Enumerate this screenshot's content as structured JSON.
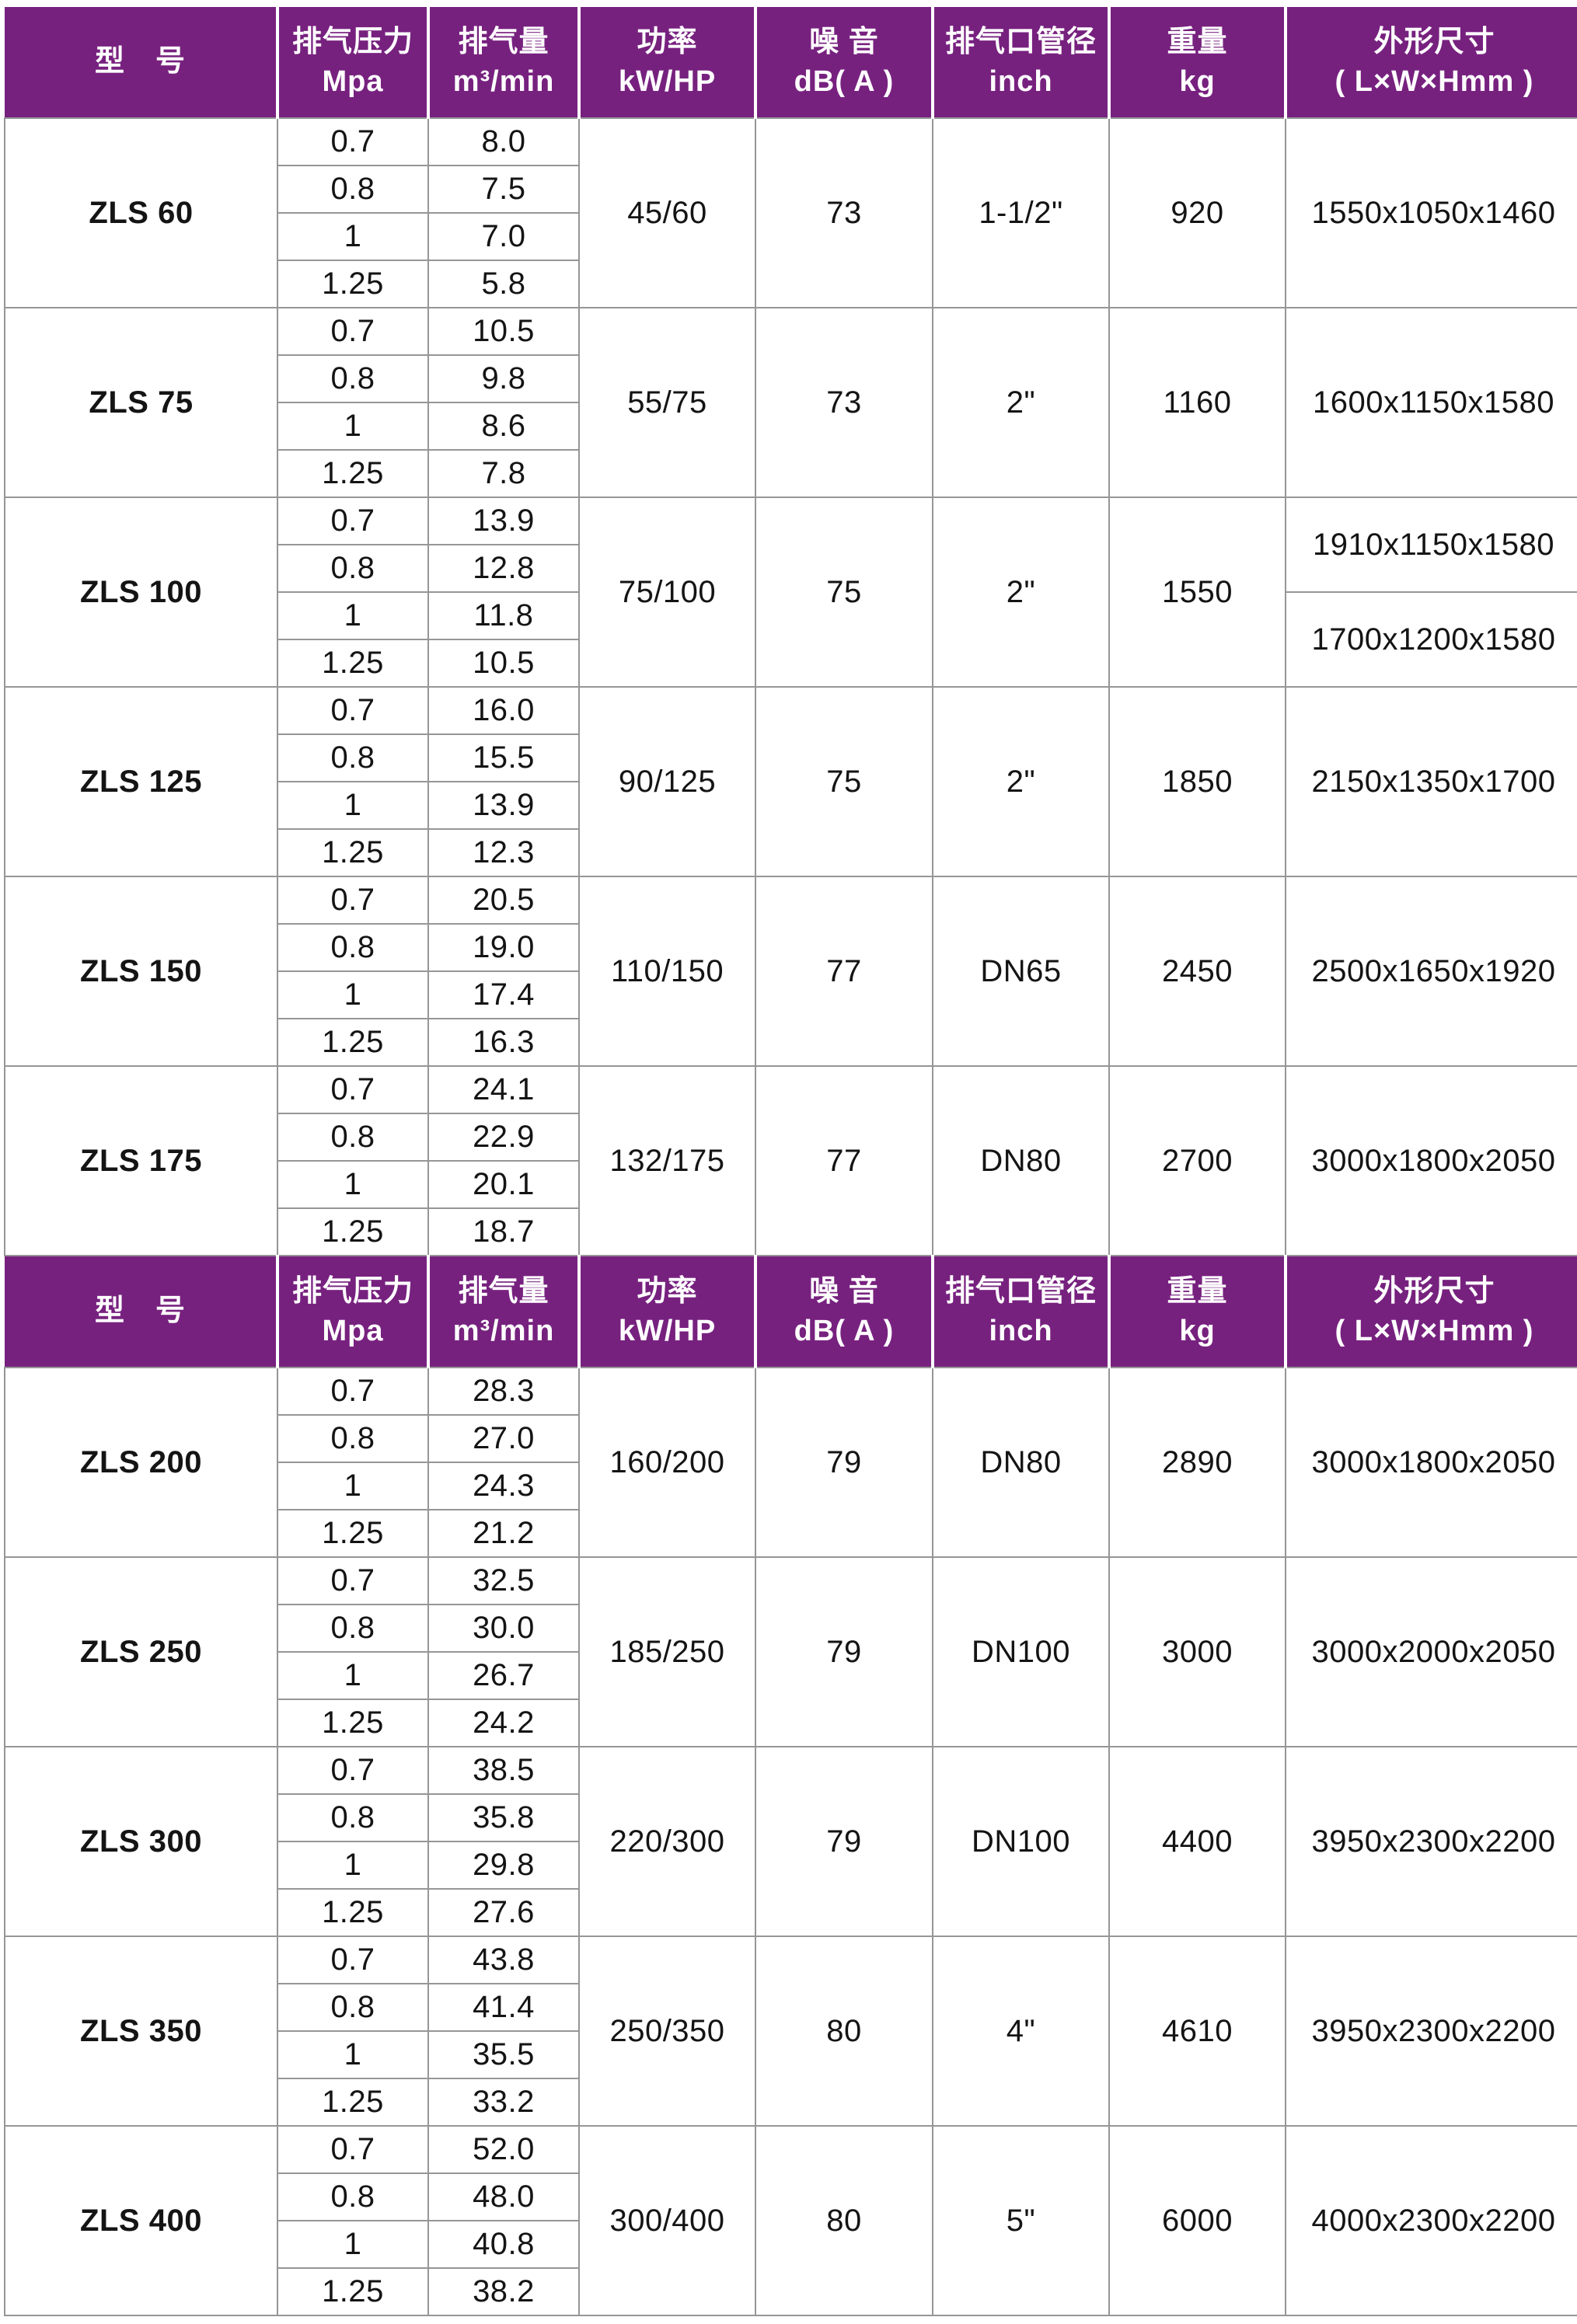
{
  "theme": {
    "header_bg": "#77217F",
    "header_text": "#FFFFFF",
    "model_text": "#701F7E",
    "grid": "#969696"
  },
  "header": {
    "model": {
      "line1": "型　号",
      "line2": ""
    },
    "pressure": {
      "line1": "排气压力",
      "line2": "Mpa"
    },
    "flow": {
      "line1": "排气量",
      "line2": "m³/min"
    },
    "power": {
      "line1": "功率",
      "line2": "kW/HP"
    },
    "noise": {
      "line1": "噪 音",
      "line2": "dB( A )"
    },
    "pipe": {
      "line1": "排气口管径",
      "line2": "inch"
    },
    "weight": {
      "line1": "重量",
      "line2": "kg"
    },
    "dims": {
      "line1": "外形尺寸",
      "line2": "( L×W×Hmm )"
    }
  },
  "sections": [
    {
      "models": [
        {
          "name": "ZLS 60",
          "rows": [
            {
              "p": "0.7",
              "f": "8.0"
            },
            {
              "p": "0.8",
              "f": "7.5"
            },
            {
              "p": "1",
              "f": "7.0"
            },
            {
              "p": "1.25",
              "f": "5.8"
            }
          ],
          "power": "45/60",
          "noise": "73",
          "pipe": "1-1/2\"",
          "weight": "920",
          "dims": [
            "1550x1050x1460"
          ]
        },
        {
          "name": "ZLS 75",
          "rows": [
            {
              "p": "0.7",
              "f": "10.5"
            },
            {
              "p": "0.8",
              "f": "9.8"
            },
            {
              "p": "1",
              "f": "8.6"
            },
            {
              "p": "1.25",
              "f": "7.8"
            }
          ],
          "power": "55/75",
          "noise": "73",
          "pipe": "2\"",
          "weight": "1160",
          "dims": [
            "1600x1150x1580"
          ]
        },
        {
          "name": "ZLS 100",
          "rows": [
            {
              "p": "0.7",
              "f": "13.9"
            },
            {
              "p": "0.8",
              "f": "12.8"
            },
            {
              "p": "1",
              "f": "11.8"
            },
            {
              "p": "1.25",
              "f": "10.5"
            }
          ],
          "power": "75/100",
          "noise": "75",
          "pipe": "2\"",
          "weight": "1550",
          "dims": [
            "1910x1150x1580",
            "1700x1200x1580"
          ]
        },
        {
          "name": "ZLS 125",
          "rows": [
            {
              "p": "0.7",
              "f": "16.0"
            },
            {
              "p": "0.8",
              "f": "15.5"
            },
            {
              "p": "1",
              "f": "13.9"
            },
            {
              "p": "1.25",
              "f": "12.3"
            }
          ],
          "power": "90/125",
          "noise": "75",
          "pipe": "2\"",
          "weight": "1850",
          "dims": [
            "2150x1350x1700"
          ]
        },
        {
          "name": "ZLS 150",
          "rows": [
            {
              "p": "0.7",
              "f": "20.5"
            },
            {
              "p": "0.8",
              "f": "19.0"
            },
            {
              "p": "1",
              "f": "17.4"
            },
            {
              "p": "1.25",
              "f": "16.3"
            }
          ],
          "power": "110/150",
          "noise": "77",
          "pipe": "DN65",
          "weight": "2450",
          "dims": [
            "2500x1650x1920"
          ]
        },
        {
          "name": "ZLS 175",
          "rows": [
            {
              "p": "0.7",
              "f": "24.1"
            },
            {
              "p": "0.8",
              "f": "22.9"
            },
            {
              "p": "1",
              "f": "20.1"
            },
            {
              "p": "1.25",
              "f": "18.7"
            }
          ],
          "power": "132/175",
          "noise": "77",
          "pipe": "DN80",
          "weight": "2700",
          "dims": [
            "3000x1800x2050"
          ]
        }
      ]
    },
    {
      "models": [
        {
          "name": "ZLS 200",
          "rows": [
            {
              "p": "0.7",
              "f": "28.3"
            },
            {
              "p": "0.8",
              "f": "27.0"
            },
            {
              "p": "1",
              "f": "24.3"
            },
            {
              "p": "1.25",
              "f": "21.2"
            }
          ],
          "power": "160/200",
          "noise": "79",
          "pipe": "DN80",
          "weight": "2890",
          "dims": [
            "3000x1800x2050"
          ]
        },
        {
          "name": "ZLS 250",
          "rows": [
            {
              "p": "0.7",
              "f": "32.5"
            },
            {
              "p": "0.8",
              "f": "30.0"
            },
            {
              "p": "1",
              "f": "26.7"
            },
            {
              "p": "1.25",
              "f": "24.2"
            }
          ],
          "power": "185/250",
          "noise": "79",
          "pipe": "DN100",
          "weight": "3000",
          "dims": [
            "3000x2000x2050"
          ]
        },
        {
          "name": "ZLS 300",
          "rows": [
            {
              "p": "0.7",
              "f": "38.5"
            },
            {
              "p": "0.8",
              "f": "35.8"
            },
            {
              "p": "1",
              "f": "29.8"
            },
            {
              "p": "1.25",
              "f": "27.6"
            }
          ],
          "power": "220/300",
          "noise": "79",
          "pipe": "DN100",
          "weight": "4400",
          "dims": [
            "3950x2300x2200"
          ]
        },
        {
          "name": "ZLS 350",
          "rows": [
            {
              "p": "0.7",
              "f": "43.8"
            },
            {
              "p": "0.8",
              "f": "41.4"
            },
            {
              "p": "1",
              "f": "35.5"
            },
            {
              "p": "1.25",
              "f": "33.2"
            }
          ],
          "power": "250/350",
          "noise": "80",
          "pipe": "4\"",
          "weight": "4610",
          "dims": [
            "3950x2300x2200"
          ]
        },
        {
          "name": "ZLS 400",
          "rows": [
            {
              "p": "0.7",
              "f": "52.0"
            },
            {
              "p": "0.8",
              "f": "48.0"
            },
            {
              "p": "1",
              "f": "40.8"
            },
            {
              "p": "1.25",
              "f": "38.2"
            }
          ],
          "power": "300/400",
          "noise": "80",
          "pipe": "5\"",
          "weight": "6000",
          "dims": [
            "4000x2300x2200"
          ]
        }
      ]
    }
  ]
}
